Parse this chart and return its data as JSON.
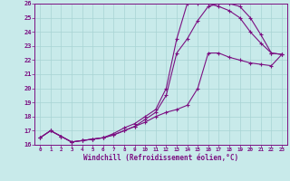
{
  "xlabel": "Windchill (Refroidissement éolien,°C)",
  "bg_color": "#c8eaea",
  "line_color": "#7b1082",
  "grid_color": "#a8d4d4",
  "xlim": [
    -0.5,
    23.5
  ],
  "ylim": [
    16,
    26
  ],
  "xticks": [
    0,
    1,
    2,
    3,
    4,
    5,
    6,
    7,
    8,
    9,
    10,
    11,
    12,
    13,
    14,
    15,
    16,
    17,
    18,
    19,
    20,
    21,
    22,
    23
  ],
  "yticks": [
    16,
    17,
    18,
    19,
    20,
    21,
    22,
    23,
    24,
    25,
    26
  ],
  "line1_x": [
    0,
    1,
    2,
    3,
    4,
    5,
    6,
    7,
    8,
    9,
    10,
    11,
    12,
    13,
    14,
    15,
    16,
    17,
    18,
    19,
    20,
    21,
    22,
    23
  ],
  "line1_y": [
    16.5,
    17.0,
    16.6,
    16.2,
    16.3,
    16.4,
    16.5,
    16.7,
    17.0,
    17.3,
    17.6,
    18.0,
    18.3,
    18.5,
    18.8,
    20.0,
    22.5,
    22.5,
    22.2,
    22.0,
    21.8,
    21.7,
    21.6,
    22.4
  ],
  "line2_x": [
    0,
    1,
    2,
    3,
    4,
    5,
    6,
    7,
    8,
    9,
    10,
    11,
    12,
    13,
    14,
    15,
    16,
    17,
    18,
    19,
    20,
    21,
    22,
    23
  ],
  "line2_y": [
    16.5,
    17.0,
    16.6,
    16.2,
    16.3,
    16.4,
    16.5,
    16.7,
    17.0,
    17.3,
    17.8,
    18.3,
    19.5,
    22.5,
    23.5,
    24.8,
    25.8,
    26.0,
    26.0,
    25.8,
    25.0,
    23.8,
    22.5,
    22.4
  ],
  "line3_x": [
    0,
    1,
    2,
    3,
    4,
    5,
    6,
    7,
    8,
    9,
    10,
    11,
    12,
    13,
    14,
    15,
    16,
    17,
    18,
    19,
    20,
    21,
    22,
    23
  ],
  "line3_y": [
    16.5,
    17.0,
    16.6,
    16.2,
    16.3,
    16.4,
    16.5,
    16.8,
    17.2,
    17.5,
    18.0,
    18.5,
    20.0,
    23.5,
    26.0,
    26.0,
    26.0,
    25.8,
    25.5,
    25.0,
    24.0,
    23.2,
    22.5,
    22.4
  ]
}
